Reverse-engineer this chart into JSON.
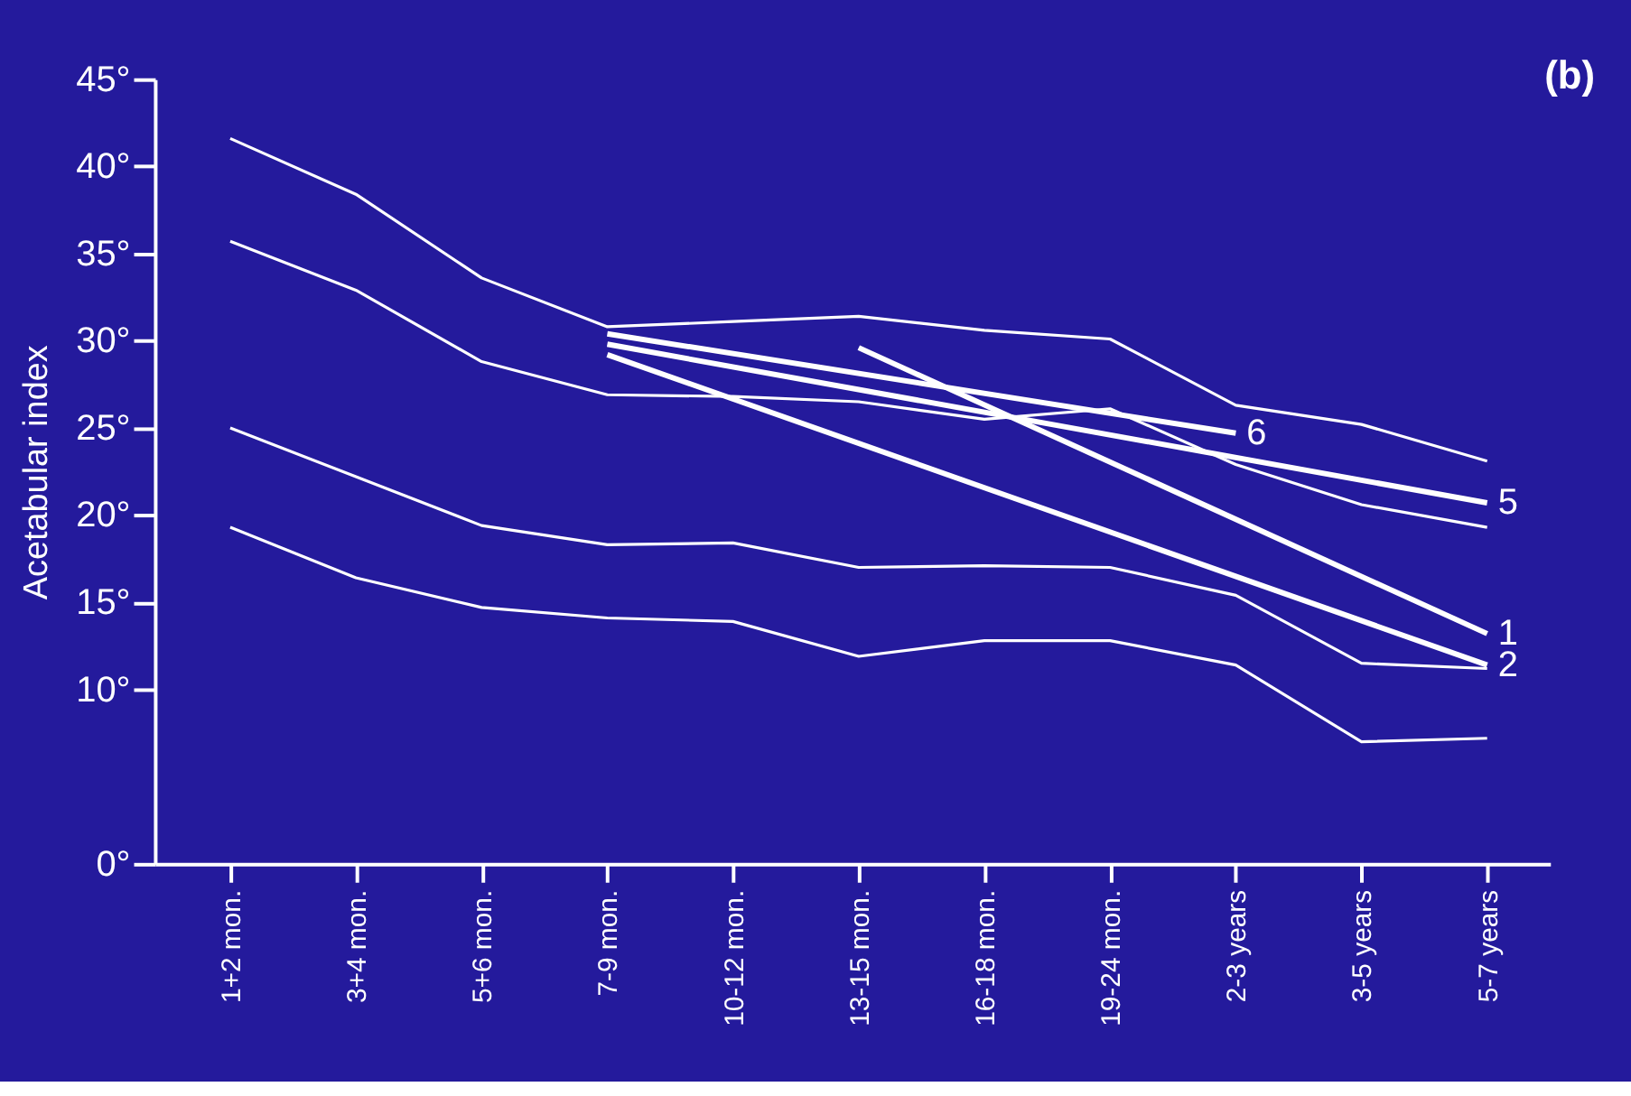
{
  "chart_data": {
    "type": "line",
    "ylabel": "Acetabular index",
    "annotations": [
      "(b)"
    ],
    "categories": [
      "1+2 mon.",
      "3+4 mon.",
      "5+6 mon.",
      "7-9 mon.",
      "10-12 mon.",
      "13-15 mon.",
      "16-18 mon.",
      "19-24 mon.",
      "2-3 years",
      "3-5 years",
      "5-7 years"
    ],
    "ylim": [
      0,
      45
    ],
    "yticks": [
      {
        "value": 0,
        "label": "0°"
      },
      {
        "value": 10,
        "label": "10°"
      },
      {
        "value": 15,
        "label": "15°"
      },
      {
        "value": 20,
        "label": "20°"
      },
      {
        "value": 25,
        "label": "25°"
      },
      {
        "value": 30,
        "label": "30°"
      },
      {
        "value": 35,
        "label": "35°"
      },
      {
        "value": 40,
        "label": "40°"
      },
      {
        "value": 45,
        "label": "45°"
      }
    ],
    "grid": false,
    "line_style": "solid",
    "marker": "none",
    "series": [
      {
        "color": "#ffffff",
        "values": [
          41.6,
          38.4,
          33.6,
          30.8,
          31.1,
          31.4,
          30.6,
          30.1,
          26.3,
          25.2,
          23.1
        ]
      },
      {
        "color": "#ffffff",
        "values": [
          35.7,
          32.9,
          28.8,
          26.9,
          26.8,
          26.5,
          25.5,
          26.1,
          22.9,
          20.6,
          19.3
        ]
      },
      {
        "color": "#ffffff",
        "values": [
          25.0,
          22.2,
          19.4,
          18.3,
          18.4,
          17.0,
          17.1,
          17.0,
          15.4,
          11.5,
          11.2
        ]
      },
      {
        "color": "#ffffff",
        "values": [
          19.3,
          16.4,
          14.7,
          14.1,
          13.9,
          11.9,
          12.8,
          12.8,
          11.4,
          7.0,
          7.2
        ]
      },
      {
        "name": "6",
        "color": "#ffffff",
        "values": [
          null,
          null,
          null,
          30.4,
          null,
          null,
          null,
          null,
          24.7,
          null,
          null
        ]
      },
      {
        "name": "5",
        "color": "#ffffff",
        "values": [
          null,
          null,
          null,
          29.8,
          null,
          null,
          null,
          null,
          null,
          null,
          20.7
        ]
      },
      {
        "name": "1",
        "color": "#ffffff",
        "values": [
          null,
          null,
          null,
          null,
          null,
          29.6,
          null,
          null,
          null,
          null,
          13.2
        ]
      },
      {
        "name": "2",
        "color": "#ffffff",
        "values": [
          null,
          null,
          null,
          29.2,
          null,
          null,
          null,
          null,
          null,
          null,
          11.4
        ]
      }
    ]
  }
}
